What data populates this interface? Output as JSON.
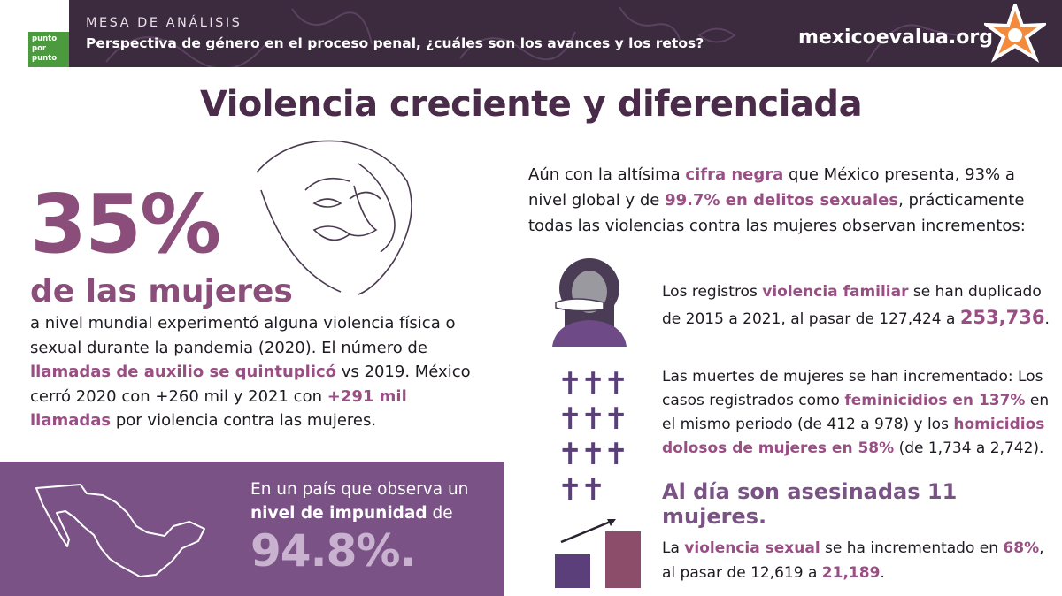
{
  "header": {
    "logo_lines": [
      "punto",
      "por",
      "punto"
    ],
    "kicker": "MESA DE ANÁLISIS",
    "subtitle": "Perspectiva de género en el proceso penal, ¿cuáles son los avances y los retos?",
    "site": "mexicoevalua.org"
  },
  "title": "Violencia creciente y diferenciada",
  "left": {
    "big_number": "35%",
    "big_label": "de las mujeres",
    "p1": "a nivel mundial experimentó alguna violencia física o sexual durante la pandemia (2020). El número de ",
    "p1_hl": "llamadas de auxilio se quintuplicó",
    "p2": " vs 2019. México cerró 2020 con +260 mil y 2021 con ",
    "p2_hl": "+291 mil llamadas",
    "p3": " por violencia contra las mujeres."
  },
  "impunity": {
    "line1": "En un país que observa un",
    "hl": "nivel de impunidad",
    "line2_rest": " de",
    "value": "94.8%."
  },
  "right": {
    "intro_a": "Aún con la altísima ",
    "intro_hl1": "cifra negra",
    "intro_b": " que México presenta, 93% a nivel global y de ",
    "intro_hl2": "99.7% en delitos sexuales",
    "intro_c": ", prácticamente todas las violencias contra las mujeres observan incrementos:",
    "family_a": "Los registros ",
    "family_hl": "violencia familiar",
    "family_b": " se han duplicado de 2015 a 2021, al pasar de 127,424 a ",
    "family_big": "253,736",
    "family_end": ".",
    "deaths_a": "Las muertes de mujeres se han incrementado: Los casos registrados como ",
    "deaths_hl1": "feminicidios en 137%",
    "deaths_b": " en el mismo periodo (de 412 a 978) y los ",
    "deaths_hl2": "homicidios dolosos de mujeres en 58%",
    "deaths_c": " (de 1,734 a 2,742).",
    "daily": "Al día son asesinadas 11 mujeres.",
    "sexual_a": "La ",
    "sexual_hl1": "violencia sexual",
    "sexual_b": " se ha incrementado en ",
    "sexual_hl2": "68%",
    "sexual_c": ", al pasar de 12,619 a ",
    "sexual_hl3": "21,189",
    "sexual_end": "."
  },
  "icons": {
    "crosses": "11 cross icons",
    "bars": [
      "small bar",
      "tall bar"
    ]
  },
  "colors": {
    "header_bg": "#3c2a3e",
    "accent": "#9a4f84",
    "box_bg": "#7a5286",
    "logo_green": "#4b9b3e",
    "star": "#f28b3c"
  }
}
